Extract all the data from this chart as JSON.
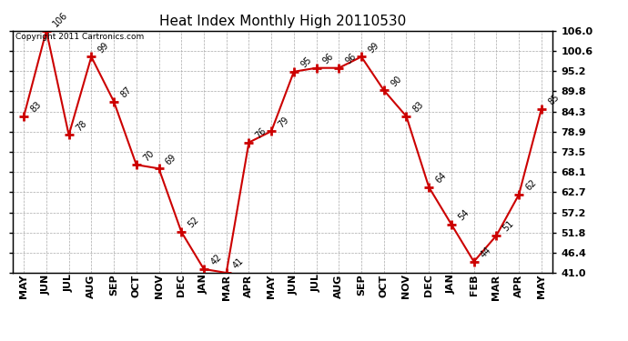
{
  "title": "Heat Index Monthly High 20110530",
  "copyright": "Copyright 2011 Cartronics.com",
  "months": [
    "MAY",
    "JUN",
    "JUL",
    "AUG",
    "SEP",
    "OCT",
    "NOV",
    "DEC",
    "JAN",
    "MAR",
    "APR",
    "MAY",
    "JUN",
    "JUL",
    "AUG",
    "SEP",
    "OCT",
    "NOV",
    "DEC",
    "JAN",
    "FEB",
    "MAR",
    "APR",
    "MAY"
  ],
  "values": [
    83,
    106,
    78,
    99,
    87,
    70,
    69,
    52,
    42,
    41,
    76,
    79,
    95,
    96,
    96,
    99,
    90,
    83,
    64,
    54,
    44,
    51,
    62,
    85
  ],
  "line_color": "#cc0000",
  "marker": "+",
  "marker_size": 7,
  "marker_color": "#cc0000",
  "bg_color": "#ffffff",
  "grid_color": "#aaaaaa",
  "ylim": [
    41.0,
    106.0
  ],
  "yticks": [
    41.0,
    46.4,
    51.8,
    57.2,
    62.7,
    68.1,
    73.5,
    78.9,
    84.3,
    89.8,
    95.2,
    100.6,
    106.0
  ],
  "title_fontsize": 11,
  "annot_fontsize": 7,
  "tick_fontsize": 8,
  "copyright_fontsize": 6.5
}
